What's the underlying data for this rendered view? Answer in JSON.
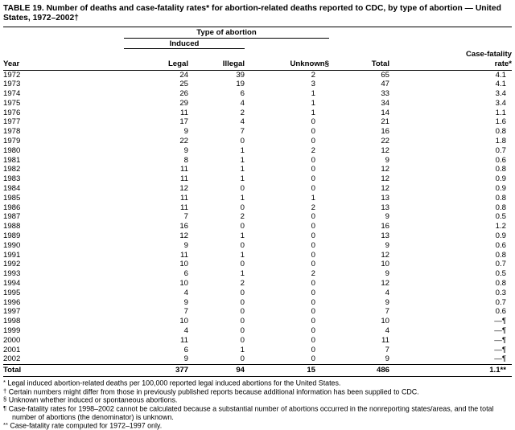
{
  "title": "TABLE 19. Number of deaths and case-fatality rates* for abortion-related deaths reported to CDC, by type of abortion — United States, 1972–2002†",
  "table": {
    "spanners": {
      "type_of_abortion": "Type of abortion",
      "induced": "Induced"
    },
    "columns": {
      "year": "Year",
      "legal": "Legal",
      "illegal": "Illegal",
      "unknown": "Unknown§",
      "total": "Total",
      "case_fatality_rate": "Case-fatality rate*"
    },
    "rows": [
      [
        "1972",
        "24",
        "39",
        "2",
        "65",
        "4.1"
      ],
      [
        "1973",
        "25",
        "19",
        "3",
        "47",
        "4.1"
      ],
      [
        "1974",
        "26",
        "6",
        "1",
        "33",
        "3.4"
      ],
      [
        "1975",
        "29",
        "4",
        "1",
        "34",
        "3.4"
      ],
      [
        "1976",
        "11",
        "2",
        "1",
        "14",
        "1.1"
      ],
      [
        "1977",
        "17",
        "4",
        "0",
        "21",
        "1.6"
      ],
      [
        "1978",
        "9",
        "7",
        "0",
        "16",
        "0.8"
      ],
      [
        "1979",
        "22",
        "0",
        "0",
        "22",
        "1.8"
      ],
      [
        "1980",
        "9",
        "1",
        "2",
        "12",
        "0.7"
      ],
      [
        "1981",
        "8",
        "1",
        "0",
        "9",
        "0.6"
      ],
      [
        "1982",
        "11",
        "1",
        "0",
        "12",
        "0.8"
      ],
      [
        "1983",
        "11",
        "1",
        "0",
        "12",
        "0.9"
      ],
      [
        "1984",
        "12",
        "0",
        "0",
        "12",
        "0.9"
      ],
      [
        "1985",
        "11",
        "1",
        "1",
        "13",
        "0.8"
      ],
      [
        "1986",
        "11",
        "0",
        "2",
        "13",
        "0.8"
      ],
      [
        "1987",
        "7",
        "2",
        "0",
        "9",
        "0.5"
      ],
      [
        "1988",
        "16",
        "0",
        "0",
        "16",
        "1.2"
      ],
      [
        "1989",
        "12",
        "1",
        "0",
        "13",
        "0.9"
      ],
      [
        "1990",
        "9",
        "0",
        "0",
        "9",
        "0.6"
      ],
      [
        "1991",
        "11",
        "1",
        "0",
        "12",
        "0.8"
      ],
      [
        "1992",
        "10",
        "0",
        "0",
        "10",
        "0.7"
      ],
      [
        "1993",
        "6",
        "1",
        "2",
        "9",
        "0.5"
      ],
      [
        "1994",
        "10",
        "2",
        "0",
        "12",
        "0.8"
      ],
      [
        "1995",
        "4",
        "0",
        "0",
        "4",
        "0.3"
      ],
      [
        "1996",
        "9",
        "0",
        "0",
        "9",
        "0.7"
      ],
      [
        "1997",
        "7",
        "0",
        "0",
        "7",
        "0.6"
      ],
      [
        "1998",
        "10",
        "0",
        "0",
        "10",
        "—¶"
      ],
      [
        "1999",
        "4",
        "0",
        "0",
        "4",
        "—¶"
      ],
      [
        "2000",
        "11",
        "0",
        "0",
        "11",
        "—¶"
      ],
      [
        "2001",
        "6",
        "1",
        "0",
        "7",
        "—¶"
      ],
      [
        "2002",
        "9",
        "0",
        "0",
        "9",
        "—¶"
      ]
    ],
    "total_row": [
      "Total",
      "377",
      "94",
      "15",
      "486",
      "1.1**"
    ]
  },
  "footnotes": [
    {
      "marker": "*",
      "text": "Legal induced abortion-related deaths per 100,000 reported legal induced abortions for the United States."
    },
    {
      "marker": "†",
      "text": "Certain numbers might differ from those in previously published reports because additional information has been supplied to CDC."
    },
    {
      "marker": "§",
      "text": "Unknown whether induced or spontaneous abortions."
    },
    {
      "marker": "¶",
      "text": "Case-fatality rates for 1998–2002 cannot be calculated because a substantial number of abortions occurred in the nonreporting states/areas, and the total number of abortions (the denominator) is unknown."
    },
    {
      "marker": "**",
      "text": "Case-fatality rate computed for 1972–1997 only."
    }
  ]
}
